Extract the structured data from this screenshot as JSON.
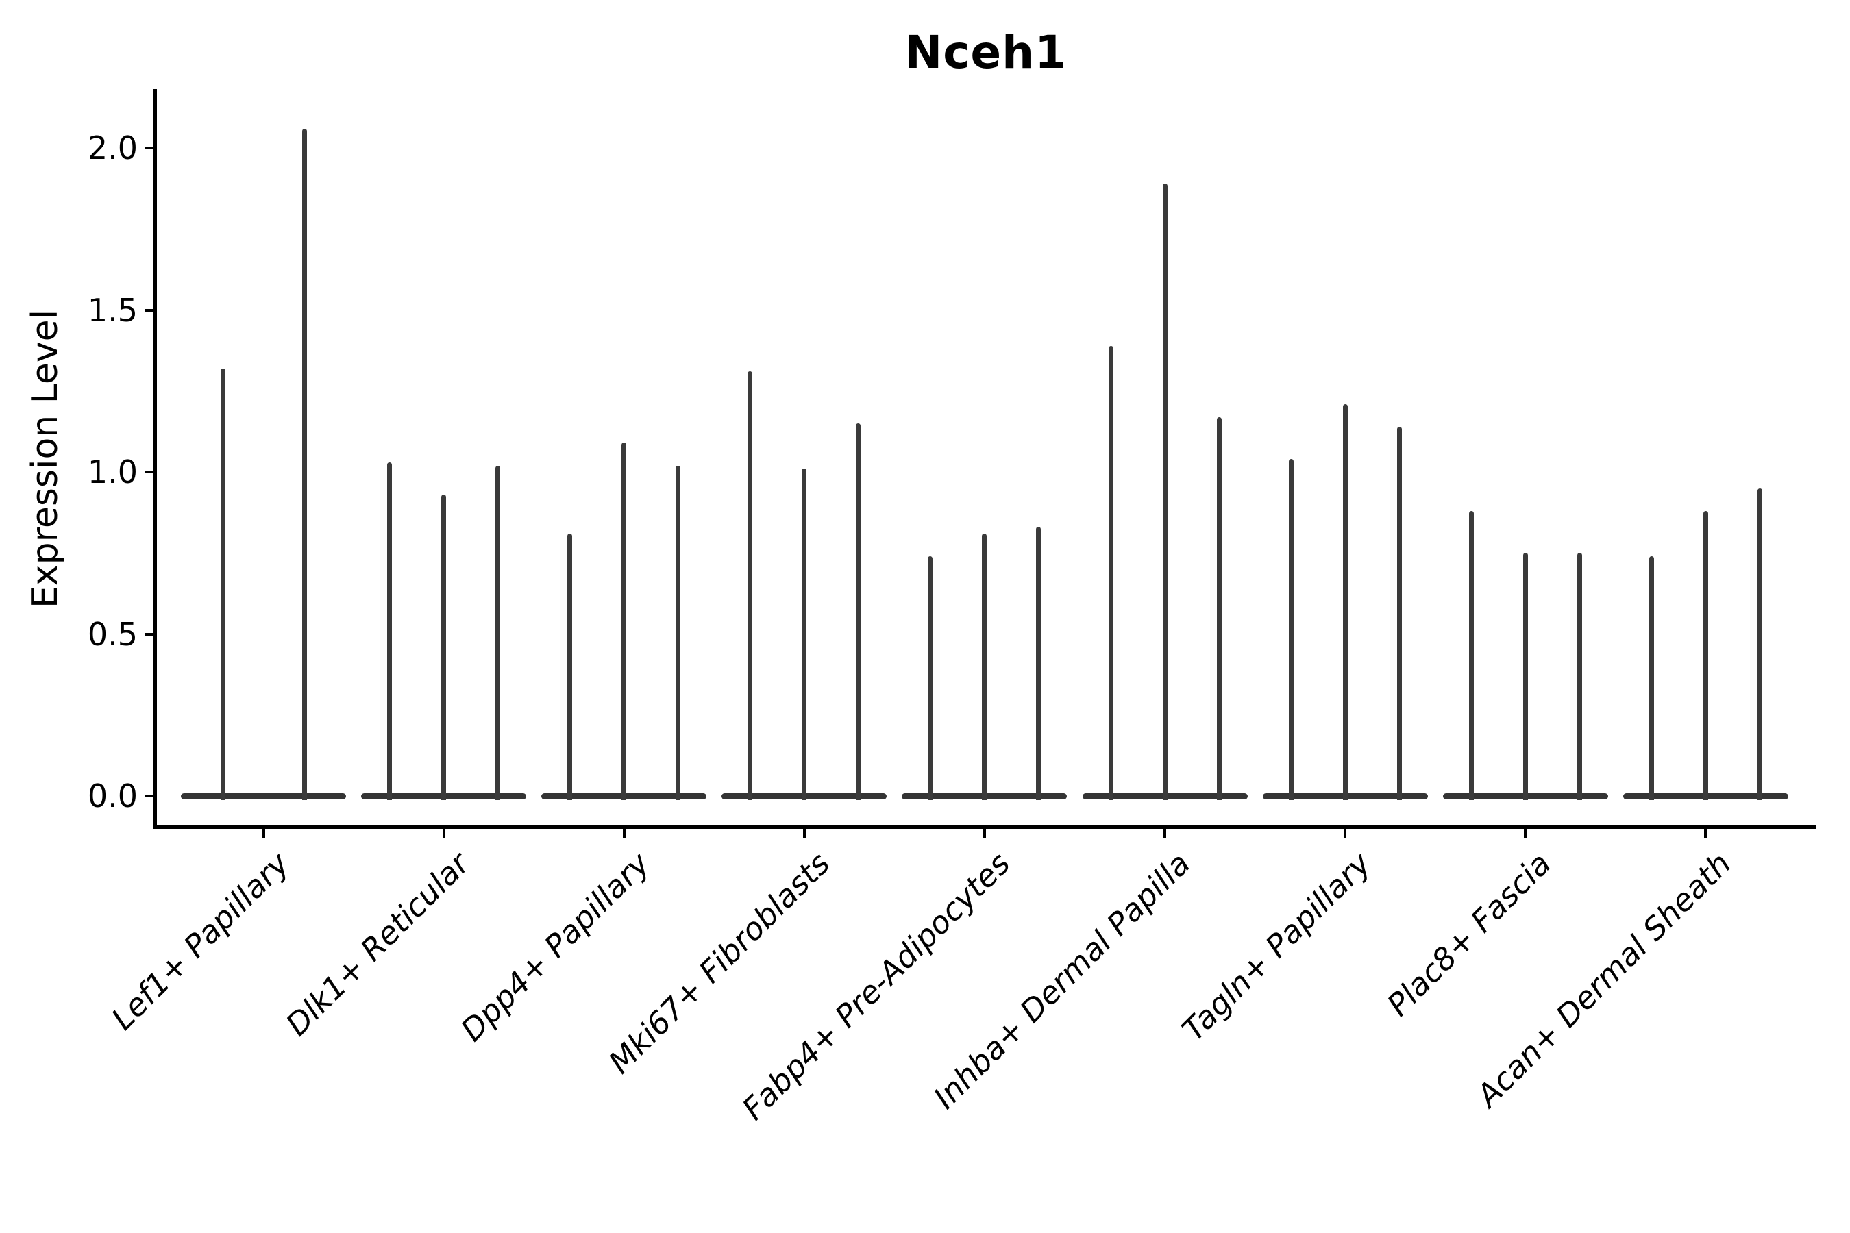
{
  "page": {
    "background_color": "#ffffff",
    "text_color": "#000000",
    "axis_color": "#000000",
    "violin_color": "#3a3a3a"
  },
  "chart_data": {
    "type": "violin",
    "title": "Nceh1",
    "xlabel": "",
    "ylabel": "Expression Level",
    "ylim": [
      -0.09,
      2.18
    ],
    "yticks": [
      "0.0",
      "0.5",
      "1.0",
      "1.5",
      "2.0"
    ],
    "ytick_values": [
      0.0,
      0.5,
      1.0,
      1.5,
      2.0
    ],
    "grid": false,
    "legend": "none",
    "xticklabel_style": "italic, rotated 45deg",
    "categories": [
      "Lef1+ Papillary",
      "Dlk1+ Reticular",
      "Dpp4+ Papillary",
      "Mki67+ Fibroblasts",
      "Fabp4+ Pre-Adipocytes",
      "Inhba+ Dermal Papilla",
      "Tagln+ Papillary",
      "Plac8+ Fascia",
      "Acan+ Dermal Sheath"
    ],
    "description": "Violin plot of Nceh1 expression; each cluster contains narrow spike-like violins (one per replicate) whose bodies collapse to a flat bar at expression 0, with thin spikes reaching the maximum expression value.",
    "groups": [
      {
        "category": "Lef1+ Papillary",
        "violin_max_values": [
          1.32,
          2.06
        ]
      },
      {
        "category": "Dlk1+ Reticular",
        "violin_max_values": [
          1.03,
          0.93,
          1.02
        ]
      },
      {
        "category": "Dpp4+ Papillary",
        "violin_max_values": [
          0.81,
          1.09,
          1.02
        ]
      },
      {
        "category": "Mki67+ Fibroblasts",
        "violin_max_values": [
          1.31,
          1.01,
          1.15
        ]
      },
      {
        "category": "Fabp4+ Pre-Adipocytes",
        "violin_max_values": [
          0.74,
          0.81,
          0.83
        ]
      },
      {
        "category": "Inhba+ Dermal Papilla",
        "violin_max_values": [
          1.39,
          1.89,
          1.17
        ]
      },
      {
        "category": "Tagln+ Papillary",
        "violin_max_values": [
          1.04,
          1.21,
          1.14
        ]
      },
      {
        "category": "Plac8+ Fascia",
        "violin_max_values": [
          0.88,
          0.75,
          0.75
        ]
      },
      {
        "category": "Acan+ Dermal Sheath",
        "violin_max_values": [
          0.74,
          0.88,
          0.95
        ]
      }
    ]
  }
}
